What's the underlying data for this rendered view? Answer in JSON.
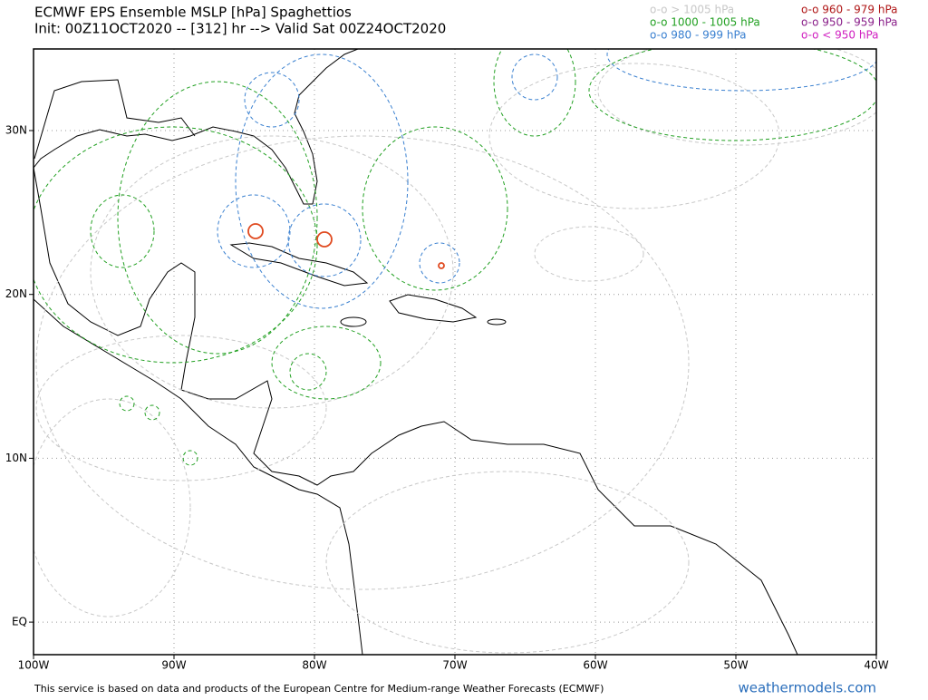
{
  "header": {
    "title": "ECMWF EPS Ensemble MSLP [hPa] Spaghettios",
    "subtitle": "Init: 00Z11OCT2020 -- [312] hr --> Valid Sat 00Z24OCT2020"
  },
  "legend": [
    {
      "text": "o-o > 1005 hPa",
      "color": "#c8c8c8"
    },
    {
      "text": "o-o 1000 - 1005 hPa",
      "color": "#22a022"
    },
    {
      "text": "o-o 980 - 999 hPa",
      "color": "#3a80d0"
    },
    {
      "text": "o-o 960 - 979 hPa",
      "color": "#b01818"
    },
    {
      "text": "o-o 950 - 959 hPa",
      "color": "#8a208a"
    },
    {
      "text": "o-o < 950 hPa",
      "color": "#d020c0"
    }
  ],
  "axes": {
    "lon_labels": [
      "100W",
      "90W",
      "80W",
      "70W",
      "60W",
      "50W",
      "40W"
    ],
    "lat_labels": [
      "30N",
      "20N",
      "10N",
      "EQ"
    ]
  },
  "footer": {
    "notice": "This service is based on data and products of the European Centre for Medium-range Weather Forecasts (ECMWF)",
    "brand": "weathermodels.com"
  }
}
